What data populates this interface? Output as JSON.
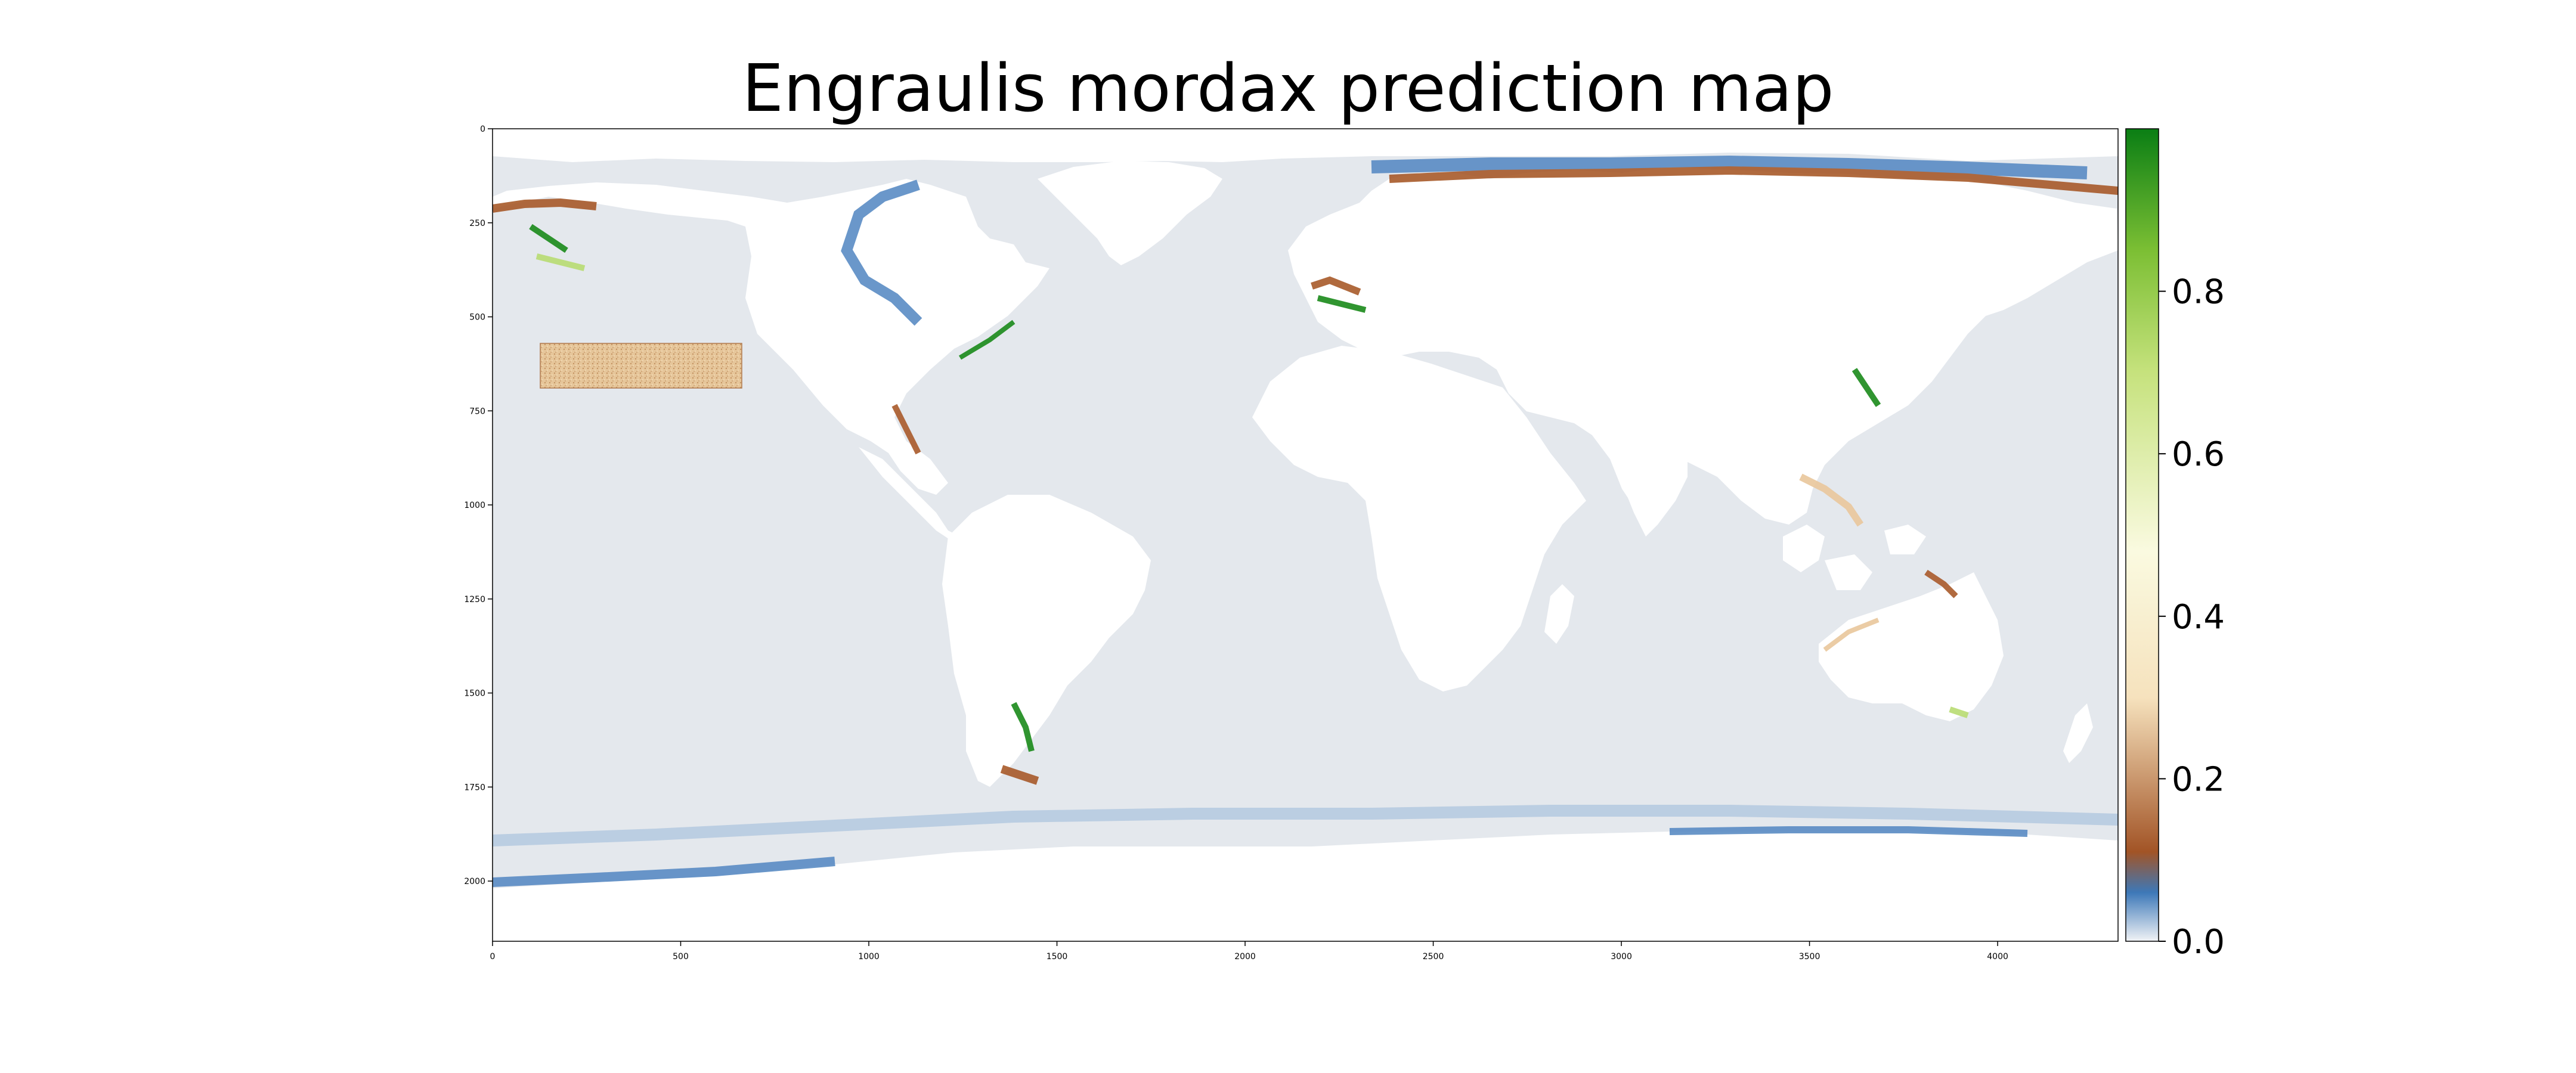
{
  "title": "Engraulis mordax prediction map",
  "axes": {
    "x_ticks": [
      "0",
      "500",
      "1000",
      "1500",
      "2000",
      "2500",
      "3000",
      "3500",
      "4000"
    ],
    "y_ticks": [
      "0",
      "250",
      "500",
      "750",
      "1000",
      "1250",
      "1500",
      "1750",
      "2000"
    ],
    "xlim": [
      0,
      4320
    ],
    "ylim": [
      2160,
      0
    ]
  },
  "colorbar": {
    "ticks": [
      "0.0",
      "0.2",
      "0.4",
      "0.6",
      "0.8"
    ],
    "range": [
      0,
      1
    ],
    "colormap": [
      "#f1f3f6",
      "#3d78b8",
      "#a25426",
      "#f6e2bd",
      "#fafae0",
      "#c6e27d",
      "#7cbf34",
      "#0a7e14"
    ]
  },
  "colors": {
    "ocean": "#e4e8ed",
    "land": "#ffffff",
    "low": "#5a8cc4",
    "mid_low": "#a85a2a",
    "mid": "#e9c79b",
    "high_light": "#b8dc72",
    "high": "#1a8a1a"
  }
}
